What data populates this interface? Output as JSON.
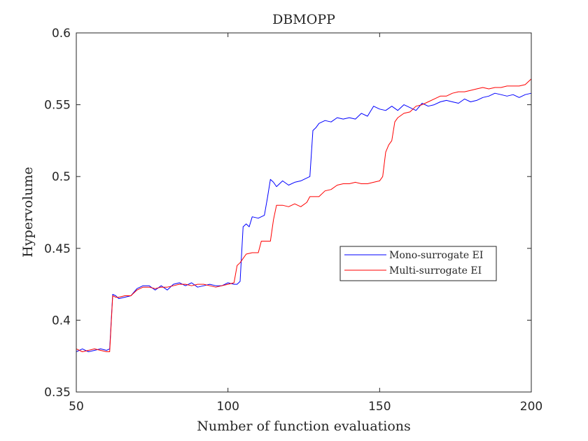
{
  "chart_data": {
    "type": "line",
    "title": "DBMOPP",
    "xlabel": "Number of function evaluations",
    "ylabel": "Hypervolume",
    "xlim": [
      50,
      200
    ],
    "ylim": [
      0.35,
      0.6
    ],
    "xticks": [
      50,
      100,
      150,
      200
    ],
    "yticks": [
      0.35,
      0.4,
      0.45,
      0.5,
      0.55,
      0.6
    ],
    "ytick_labels": [
      "0.35",
      "0.4",
      "0.45",
      "0.5",
      "0.55",
      "0.6"
    ],
    "grid": false,
    "legend_position": "center-right",
    "series": [
      {
        "name": "Mono-surrogate EI",
        "color": "#0000ff",
        "x": [
          50,
          52,
          54,
          56,
          58,
          60,
          61,
          62,
          63,
          64,
          66,
          68,
          70,
          72,
          74,
          76,
          78,
          80,
          82,
          84,
          86,
          88,
          90,
          92,
          94,
          96,
          98,
          100,
          102,
          103,
          104,
          105,
          106,
          107,
          108,
          110,
          112,
          113,
          114,
          115,
          116,
          118,
          120,
          122,
          124,
          126,
          127,
          128,
          129,
          130,
          132,
          134,
          136,
          138,
          140,
          142,
          144,
          146,
          148,
          150,
          152,
          154,
          156,
          158,
          160,
          162,
          164,
          166,
          168,
          170,
          172,
          174,
          176,
          178,
          180,
          182,
          184,
          186,
          188,
          190,
          192,
          194,
          196,
          198,
          200
        ],
        "y": [
          0.378,
          0.38,
          0.378,
          0.379,
          0.38,
          0.379,
          0.38,
          0.418,
          0.417,
          0.415,
          0.416,
          0.417,
          0.422,
          0.424,
          0.424,
          0.421,
          0.424,
          0.421,
          0.425,
          0.426,
          0.424,
          0.426,
          0.423,
          0.424,
          0.425,
          0.424,
          0.424,
          0.426,
          0.425,
          0.425,
          0.427,
          0.465,
          0.467,
          0.465,
          0.472,
          0.471,
          0.473,
          0.485,
          0.498,
          0.496,
          0.493,
          0.497,
          0.494,
          0.496,
          0.497,
          0.499,
          0.5,
          0.532,
          0.534,
          0.537,
          0.539,
          0.538,
          0.541,
          0.54,
          0.541,
          0.54,
          0.544,
          0.542,
          0.549,
          0.547,
          0.546,
          0.549,
          0.546,
          0.55,
          0.548,
          0.546,
          0.551,
          0.549,
          0.55,
          0.552,
          0.553,
          0.552,
          0.551,
          0.554,
          0.552,
          0.553,
          0.555,
          0.556,
          0.558,
          0.557,
          0.556,
          0.557,
          0.555,
          0.557,
          0.558
        ]
      },
      {
        "name": "Multi-surrogate EI",
        "color": "#ff0000",
        "x": [
          50,
          52,
          54,
          56,
          58,
          60,
          61,
          62,
          63,
          64,
          66,
          68,
          70,
          72,
          74,
          76,
          78,
          80,
          82,
          84,
          86,
          88,
          90,
          92,
          94,
          96,
          98,
          100,
          102,
          103,
          104,
          106,
          108,
          110,
          111,
          112,
          114,
          115,
          116,
          118,
          120,
          122,
          124,
          126,
          127,
          128,
          130,
          132,
          134,
          136,
          138,
          140,
          142,
          144,
          146,
          148,
          150,
          151,
          152,
          153,
          154,
          155,
          156,
          158,
          160,
          162,
          164,
          166,
          168,
          170,
          172,
          174,
          176,
          178,
          180,
          182,
          184,
          186,
          188,
          190,
          192,
          194,
          196,
          198,
          200
        ],
        "y": [
          0.38,
          0.378,
          0.379,
          0.38,
          0.379,
          0.378,
          0.378,
          0.417,
          0.416,
          0.416,
          0.417,
          0.417,
          0.421,
          0.423,
          0.423,
          0.422,
          0.423,
          0.423,
          0.424,
          0.425,
          0.425,
          0.424,
          0.425,
          0.425,
          0.424,
          0.423,
          0.424,
          0.425,
          0.426,
          0.438,
          0.44,
          0.446,
          0.447,
          0.447,
          0.455,
          0.455,
          0.455,
          0.47,
          0.48,
          0.48,
          0.479,
          0.481,
          0.479,
          0.482,
          0.486,
          0.486,
          0.486,
          0.49,
          0.491,
          0.494,
          0.495,
          0.495,
          0.496,
          0.495,
          0.495,
          0.496,
          0.497,
          0.5,
          0.517,
          0.522,
          0.525,
          0.538,
          0.541,
          0.544,
          0.545,
          0.549,
          0.55,
          0.552,
          0.554,
          0.556,
          0.556,
          0.558,
          0.559,
          0.559,
          0.56,
          0.561,
          0.562,
          0.561,
          0.562,
          0.562,
          0.563,
          0.563,
          0.563,
          0.564,
          0.568
        ]
      }
    ]
  }
}
